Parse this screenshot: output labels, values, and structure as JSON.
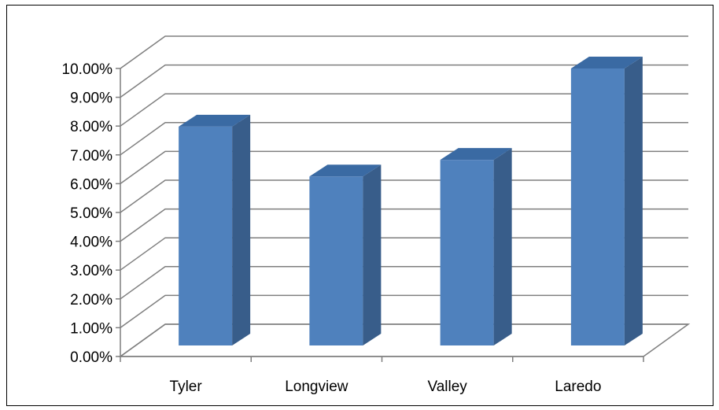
{
  "chart_data": {
    "type": "bar",
    "style": "3d-column",
    "categories": [
      "Tyler",
      "Longview",
      "Valley",
      "Laredo"
    ],
    "values": [
      0.079,
      0.061,
      0.067,
      0.1
    ],
    "ylim": [
      0,
      0.1
    ],
    "yticks": [
      "0.00%",
      "1.00%",
      "2.00%",
      "3.00%",
      "4.00%",
      "5.00%",
      "6.00%",
      "7.00%",
      "8.00%",
      "9.00%",
      "10.00%"
    ],
    "grid": true,
    "legend": "none",
    "colors": {
      "front": "#4f81bd",
      "side": "#385d8a",
      "top": "#3a6aa3",
      "grid": "#7f7f7f"
    }
  }
}
